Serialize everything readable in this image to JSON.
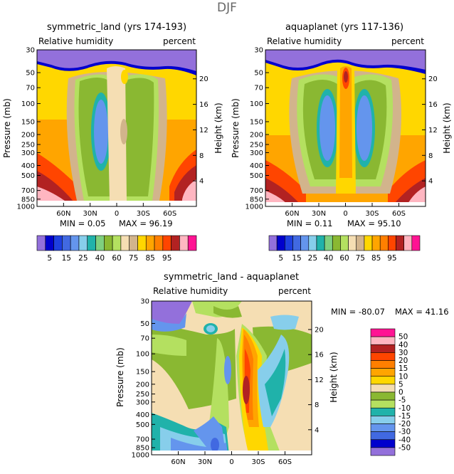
{
  "page_title": "DJF",
  "panels": [
    {
      "title": "symmetric_land (yrs 174-193)",
      "left_label": "Relative humidity",
      "right_label": "percent",
      "y_left_label": "Pressure (mb)",
      "y_right_label": "Height (km)",
      "min_text": "MIN =   0.05",
      "max_text": "MAX =   96.19"
    },
    {
      "title": "aquaplanet (yrs 117-136)",
      "left_label": "Relative humidity",
      "right_label": "percent",
      "y_left_label": "Pressure (mb)",
      "y_right_label": "Height (km)",
      "min_text": "MIN =   0.11",
      "max_text": "MAX =   95.10"
    },
    {
      "title": "symmetric_land - aquaplanet",
      "left_label": "Relative humidity",
      "right_label": "percent",
      "y_left_label": "Pressure (mb)",
      "y_right_label": "Height (km)",
      "min_text": "MIN = -80.07",
      "max_text": "MAX =  41.16"
    }
  ],
  "chart_data": [
    {
      "type": "heatmap",
      "title": "symmetric_land (yrs 174-193)",
      "xlabel": "",
      "ylabel": "Pressure (mb)",
      "y2label": "Height (km)",
      "x_ticks": [
        "60N",
        "30N",
        "0",
        "30S",
        "60S"
      ],
      "x_tick_values": [
        60,
        30,
        0,
        -30,
        -60
      ],
      "xlim": [
        90,
        -90
      ],
      "y_ticks": [
        "30",
        "50",
        "70",
        "100",
        "150",
        "200",
        "250",
        "300",
        "400",
        "500",
        "700",
        "850",
        "1000"
      ],
      "y_tick_values": [
        30,
        50,
        70,
        100,
        150,
        200,
        250,
        300,
        400,
        500,
        700,
        850,
        1000
      ],
      "ylim": [
        30,
        1000
      ],
      "y_scale": "log",
      "y2_ticks": [
        "20",
        "16",
        "12",
        "8",
        "4"
      ],
      "y2_tick_values": [
        20,
        16,
        12,
        8,
        4
      ],
      "min": 0.05,
      "max": 96.19,
      "colorbar_labels": [
        "5",
        "15",
        "25",
        "40",
        "60",
        "75",
        "85",
        "95"
      ],
      "colorbar_levels": [
        5,
        10,
        15,
        20,
        25,
        30,
        40,
        50,
        60,
        70,
        75,
        80,
        85,
        90,
        95
      ]
    },
    {
      "type": "heatmap",
      "title": "aquaplanet (yrs 117-136)",
      "xlabel": "",
      "ylabel": "Pressure (mb)",
      "y2label": "Height (km)",
      "x_ticks": [
        "60N",
        "30N",
        "0",
        "30S",
        "60S"
      ],
      "x_tick_values": [
        60,
        30,
        0,
        -30,
        -60
      ],
      "xlim": [
        90,
        -90
      ],
      "y_ticks": [
        "30",
        "50",
        "70",
        "100",
        "150",
        "200",
        "250",
        "300",
        "400",
        "500",
        "700",
        "850",
        "1000"
      ],
      "y_tick_values": [
        30,
        50,
        70,
        100,
        150,
        200,
        250,
        300,
        400,
        500,
        700,
        850,
        1000
      ],
      "ylim": [
        30,
        1000
      ],
      "y_scale": "log",
      "y2_ticks": [
        "20",
        "16",
        "12",
        "8",
        "4"
      ],
      "y2_tick_values": [
        20,
        16,
        12,
        8,
        4
      ],
      "min": 0.11,
      "max": 95.1,
      "colorbar_labels": [
        "5",
        "15",
        "25",
        "40",
        "60",
        "75",
        "85",
        "95"
      ],
      "colorbar_levels": [
        5,
        10,
        15,
        20,
        25,
        30,
        40,
        50,
        60,
        70,
        75,
        80,
        85,
        90,
        95
      ]
    },
    {
      "type": "heatmap",
      "title": "symmetric_land - aquaplanet",
      "xlabel": "",
      "ylabel": "Pressure (mb)",
      "y2label": "Height (km)",
      "x_ticks": [
        "60N",
        "30N",
        "0",
        "30S",
        "60S"
      ],
      "x_tick_values": [
        60,
        30,
        0,
        -30,
        -60
      ],
      "xlim": [
        90,
        -90
      ],
      "y_ticks": [
        "30",
        "50",
        "70",
        "100",
        "150",
        "200",
        "250",
        "300",
        "400",
        "500",
        "700",
        "850",
        "1000"
      ],
      "y_tick_values": [
        30,
        50,
        70,
        100,
        150,
        200,
        250,
        300,
        400,
        500,
        700,
        850,
        1000
      ],
      "ylim": [
        30,
        1000
      ],
      "y_scale": "log",
      "y2_ticks": [
        "20",
        "16",
        "12",
        "8",
        "4"
      ],
      "y2_tick_values": [
        20,
        16,
        12,
        8,
        4
      ],
      "min": -80.07,
      "max": 41.16,
      "colorbar_labels": [
        "50",
        "40",
        "30",
        "20",
        "15",
        "10",
        "5",
        "0",
        "-5",
        "-10",
        "-15",
        "-20",
        "-30",
        "-40",
        "-50"
      ],
      "colorbar_levels": [
        -50,
        -40,
        -30,
        -20,
        -15,
        -10,
        -5,
        0,
        5,
        10,
        15,
        20,
        30,
        40,
        50
      ]
    }
  ],
  "colors": {
    "absolute_scale": [
      "#9370db",
      "#0000cd",
      "#1e40e0",
      "#4169e1",
      "#6495ed",
      "#87ceeb",
      "#20b2aa",
      "#7fd07f",
      "#8ab832",
      "#b4e060",
      "#f5deb3",
      "#d2b48c",
      "#ffd700",
      "#ffa500",
      "#ff7f00",
      "#ff4500",
      "#b22222",
      "#ffb6c1",
      "#ff1493"
    ],
    "diff_scale": [
      "#9370db",
      "#0000cd",
      "#4169e1",
      "#6495ed",
      "#87ceeb",
      "#20b2aa",
      "#b4e060",
      "#8ab832",
      "#f5deb3",
      "#ffd700",
      "#ffa500",
      "#ff7f00",
      "#ff4500",
      "#b22222",
      "#ffb6c1",
      "#ff1493"
    ]
  }
}
